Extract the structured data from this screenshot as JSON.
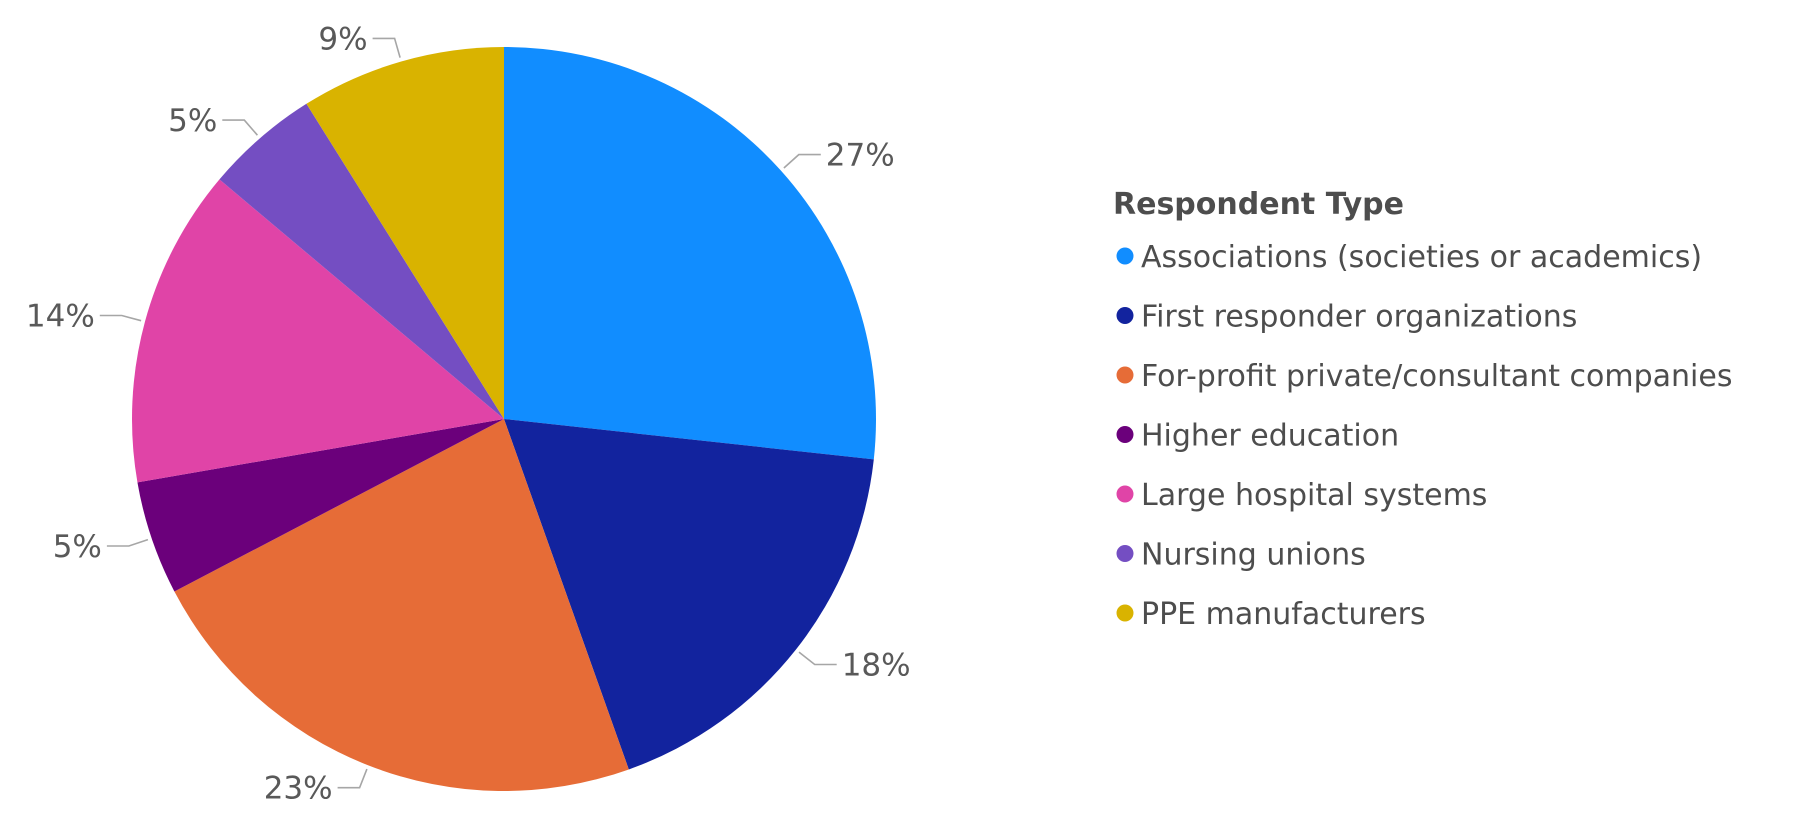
{
  "chart_data": {
    "type": "pie",
    "title": "",
    "legend_title": "Respondent Type",
    "legend_position": "right",
    "slices": [
      {
        "label": "Associations (societies or academics)",
        "value": 27,
        "display": "27%",
        "color": "#118DFF"
      },
      {
        "label": "First responder organizations",
        "value": 18,
        "display": "18%",
        "color": "#12239E"
      },
      {
        "label": "For-profit private/consultant companies",
        "value": 23,
        "display": "23%",
        "color": "#E66C37"
      },
      {
        "label": "Higher education",
        "value": 5,
        "display": "5%",
        "color": "#6B007B"
      },
      {
        "label": "Large hospital systems",
        "value": 14,
        "display": "14%",
        "color": "#E044A7"
      },
      {
        "label": "Nursing unions",
        "value": 5,
        "display": "5%",
        "color": "#744EC2"
      },
      {
        "label": "PPE manufacturers",
        "value": 9,
        "display": "9%",
        "color": "#D9B300"
      }
    ]
  }
}
